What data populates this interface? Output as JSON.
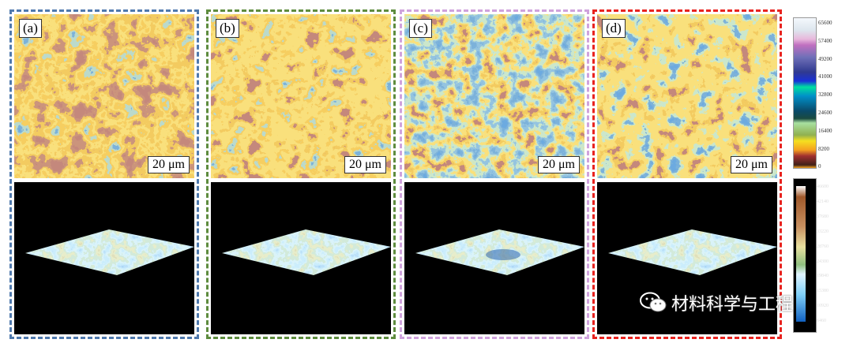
{
  "panels": [
    {
      "label": "(a)",
      "scale": "20 μm",
      "border": "#4f79ad",
      "seed": 3
    },
    {
      "label": "(b)",
      "scale": "20 μm",
      "border": "#5e8c3e",
      "seed": 11
    },
    {
      "label": "(c)",
      "scale": "20 μm",
      "border": "#cfa2dc",
      "seed": 23
    },
    {
      "label": "(d)",
      "scale": "20 μm",
      "border": "#e8231f",
      "seed": 41
    }
  ],
  "colorbar_top": {
    "ticks": [
      "65600",
      "57400",
      "49200",
      "41000",
      "32800",
      "24600",
      "16400",
      "8200",
      "0"
    ]
  },
  "colorbar_bottom": {
    "ticks": [
      "46600",
      "42140",
      "37680",
      "33220",
      "28760",
      "24300",
      "19840",
      "15380",
      "10920",
      "6460"
    ]
  },
  "watermark": {
    "text": "材料科学与工程",
    "icon": "wechat-icon"
  }
}
